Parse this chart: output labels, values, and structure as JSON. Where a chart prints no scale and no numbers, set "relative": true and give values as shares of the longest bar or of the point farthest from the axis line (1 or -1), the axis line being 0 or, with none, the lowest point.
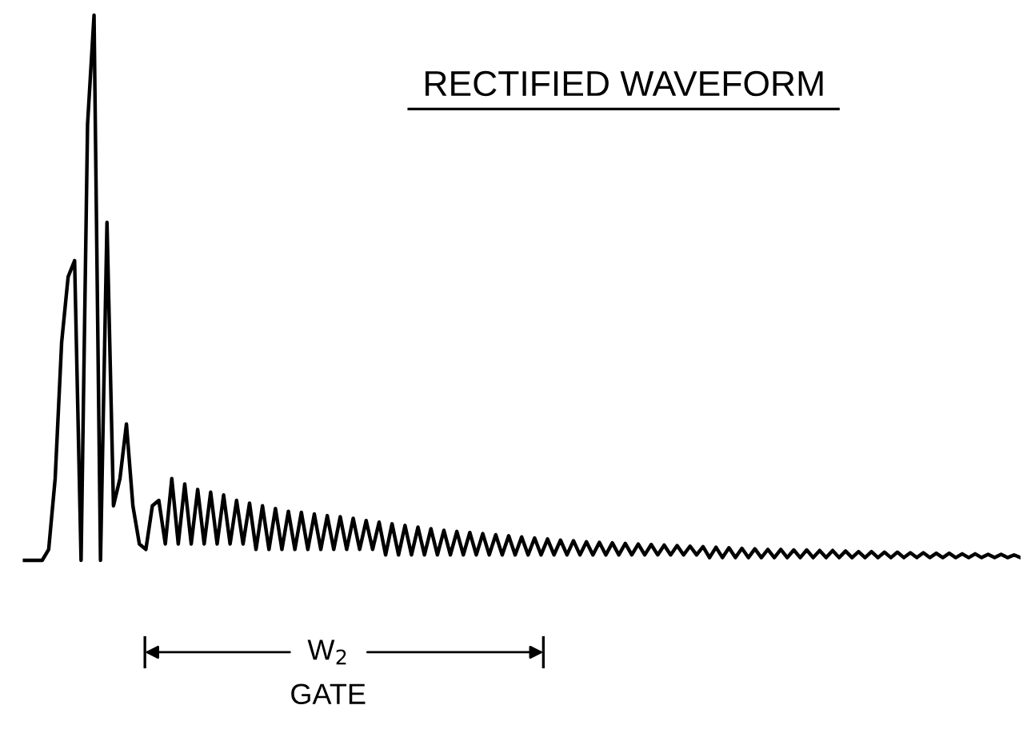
{
  "chart_data": {
    "type": "line",
    "relative": true,
    "title": "RECTIFIED WAVEFORM",
    "line_style": "solid",
    "annotations": [
      "W$_{2}$",
      "GATE"
    ],
    "categories": [
      null,
      null,
      null,
      null,
      null,
      null,
      null,
      null,
      null,
      null,
      null,
      null,
      null,
      null,
      null,
      null,
      null,
      null,
      null,
      null,
      null,
      null,
      null,
      null,
      null,
      null,
      null,
      null,
      null,
      null,
      null,
      null,
      null,
      null,
      null,
      null,
      null,
      null,
      null,
      null,
      null,
      null,
      null,
      null,
      null,
      null,
      null,
      null,
      null,
      null,
      null,
      null,
      null,
      null,
      null,
      null,
      null,
      null,
      null,
      null,
      null,
      null,
      null,
      null,
      null,
      null,
      null,
      null,
      null,
      null,
      null,
      null,
      null,
      null,
      null,
      null,
      null,
      null,
      null,
      null,
      null,
      null,
      null,
      null,
      null,
      null,
      null,
      null,
      null,
      null,
      null,
      null,
      null,
      null,
      null,
      null,
      null,
      null,
      null,
      null,
      null,
      null,
      null,
      null,
      null,
      null,
      null,
      null,
      null,
      null,
      null,
      null,
      null,
      null,
      null,
      null,
      null,
      null,
      null,
      null,
      null,
      null,
      null,
      null,
      null,
      null,
      null,
      null,
      null,
      null,
      null,
      null,
      null,
      null,
      null,
      null,
      null,
      null,
      null,
      null,
      null,
      null,
      null,
      null,
      null,
      null,
      null,
      null,
      null,
      null,
      null,
      null,
      null,
      null,
      null
    ],
    "series": [
      {
        "color": "#000000",
        "values": [
          0,
          0,
          0,
          0,
          0.02,
          0.15,
          0.4,
          0.52,
          0.55,
          0,
          0.8,
          1,
          0,
          0.62,
          0.1,
          0.15,
          0.25,
          0.1,
          0.03,
          0.02,
          0.1,
          0.11,
          0.03,
          0.15,
          0.03,
          0.14,
          0.03,
          0.13,
          0.03,
          0.125,
          0.03,
          0.12,
          0.03,
          0.11,
          0.03,
          0.105,
          0.02,
          0.1,
          0.02,
          0.095,
          0.02,
          0.09,
          0.02,
          0.088,
          0.02,
          0.085,
          0.02,
          0.082,
          0.02,
          0.08,
          0.02,
          0.077,
          0.02,
          0.073,
          0.02,
          0.07,
          0.01,
          0.067,
          0.01,
          0.064,
          0.01,
          0.061,
          0.01,
          0.058,
          0.01,
          0.055,
          0.01,
          0.053,
          0.01,
          0.051,
          0.01,
          0.049,
          0.01,
          0.047,
          0.01,
          0.045,
          0.01,
          0.043,
          0.01,
          0.041,
          0.01,
          0.039,
          0.01,
          0.037,
          0.01,
          0.036,
          0.01,
          0.034,
          0.01,
          0.033,
          0.01,
          0.032,
          0.01,
          0.031,
          0.01,
          0.03,
          0.01,
          0.029,
          0.01,
          0.028,
          0.01,
          0.027,
          0.01,
          0.026,
          0.01,
          0.025,
          0.005,
          0.024,
          0.005,
          0.023,
          0.005,
          0.022,
          0.005,
          0.021,
          0.005,
          0.02,
          0.005,
          0.02,
          0.005,
          0.019,
          0.005,
          0.019,
          0.005,
          0.018,
          0.005,
          0.018,
          0.005,
          0.017,
          0.005,
          0.016,
          0.005,
          0.016,
          0.005,
          0.015,
          0.005,
          0.015,
          0.005,
          0.014,
          0.005,
          0.014,
          0.005,
          0.013,
          0.005,
          0.013,
          0.005,
          0.012,
          0.005,
          0.012,
          0.005,
          0.011,
          0.005,
          0.011,
          0.005,
          0.01,
          0.005
        ]
      }
    ]
  }
}
